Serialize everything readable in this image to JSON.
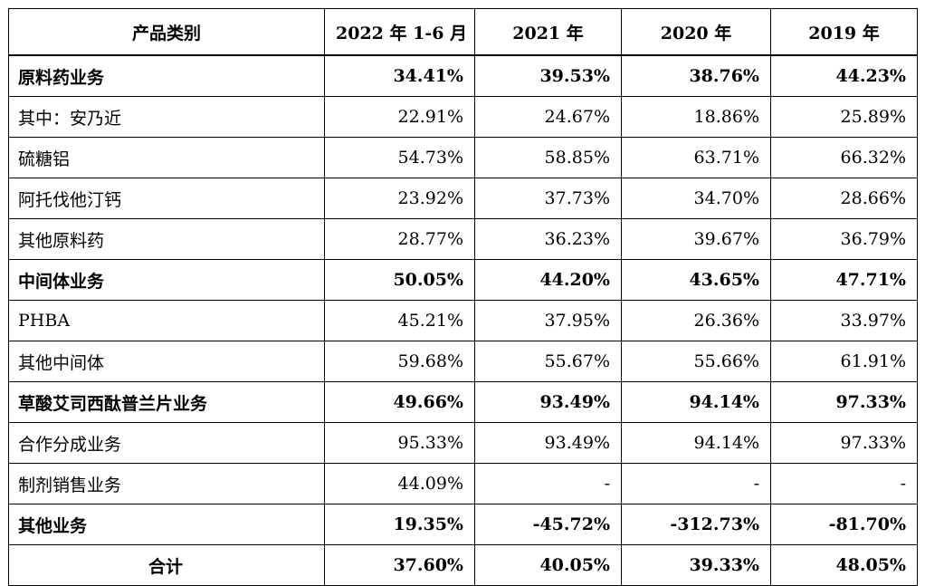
{
  "headers": [
    "产品类别",
    "2022 年 1-6 月",
    "2021 年",
    "2020 年",
    "2019 年"
  ],
  "rows": [
    {
      "label": "原料药业务",
      "values": [
        "34.41%",
        "39.53%",
        "38.76%",
        "44.23%"
      ],
      "bold": true
    },
    {
      "label": "其中：安乃近",
      "values": [
        "22.91%",
        "24.67%",
        "18.86%",
        "25.89%"
      ],
      "bold": false
    },
    {
      "label": "硫糖铝",
      "values": [
        "54.73%",
        "58.85%",
        "63.71%",
        "66.32%"
      ],
      "bold": false
    },
    {
      "label": "阿托伐他汀钙",
      "values": [
        "23.92%",
        "37.73%",
        "34.70%",
        "28.66%"
      ],
      "bold": false
    },
    {
      "label": "其他原料药",
      "values": [
        "28.77%",
        "36.23%",
        "39.67%",
        "36.79%"
      ],
      "bold": false
    },
    {
      "label": "中间体业务",
      "values": [
        "50.05%",
        "44.20%",
        "43.65%",
        "47.71%"
      ],
      "bold": true
    },
    {
      "label": "PHBA",
      "values": [
        "45.21%",
        "37.95%",
        "26.36%",
        "33.97%"
      ],
      "bold": false
    },
    {
      "label": "其他中间体",
      "values": [
        "59.68%",
        "55.67%",
        "55.66%",
        "61.91%"
      ],
      "bold": false
    },
    {
      "label": "草酸艾司西酞普兰片业务",
      "values": [
        "49.66%",
        "93.49%",
        "94.14%",
        "97.33%"
      ],
      "bold": true
    },
    {
      "label": "合作分成业务",
      "values": [
        "95.33%",
        "93.49%",
        "94.14%",
        "97.33%"
      ],
      "bold": false
    },
    {
      "label": "制剂销售业务",
      "values": [
        "44.09%",
        "-",
        "-",
        "-"
      ],
      "bold": false
    },
    {
      "label": "其他业务",
      "values": [
        "19.35%",
        "-45.72%",
        "-312.73%",
        "-81.70%"
      ],
      "bold": true
    },
    {
      "label": "合计",
      "values": [
        "37.60%",
        "40.05%",
        "39.33%",
        "48.05%"
      ],
      "bold": true,
      "total": true
    }
  ]
}
